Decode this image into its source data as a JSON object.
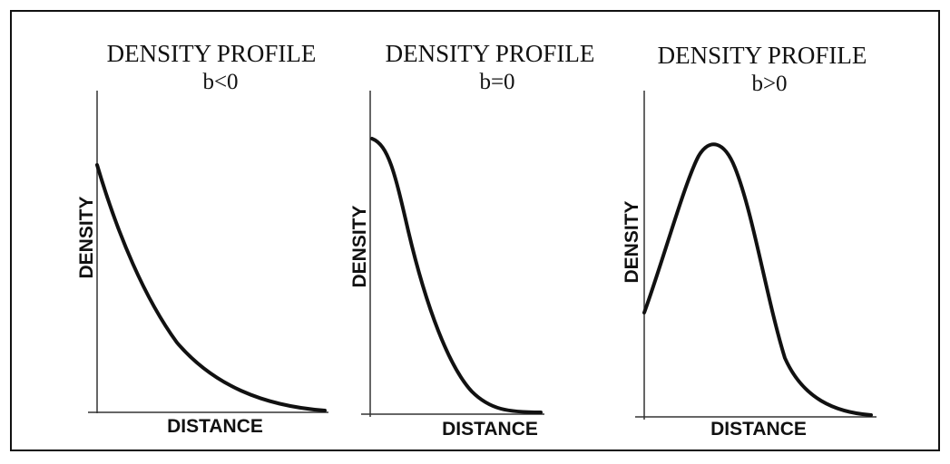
{
  "panels": [
    {
      "title": "DENSITY PROFILE",
      "subtitle": "b<0",
      "ylabel": "DENSITY",
      "xlabel": "DISTANCE"
    },
    {
      "title": "DENSITY PROFILE",
      "subtitle": "b=0",
      "ylabel": "DENSITY",
      "xlabel": "DISTANCE"
    },
    {
      "title": "DENSITY PROFILE",
      "subtitle": "b>0",
      "ylabel": "DENSITY",
      "xlabel": "DISTANCE"
    }
  ]
}
